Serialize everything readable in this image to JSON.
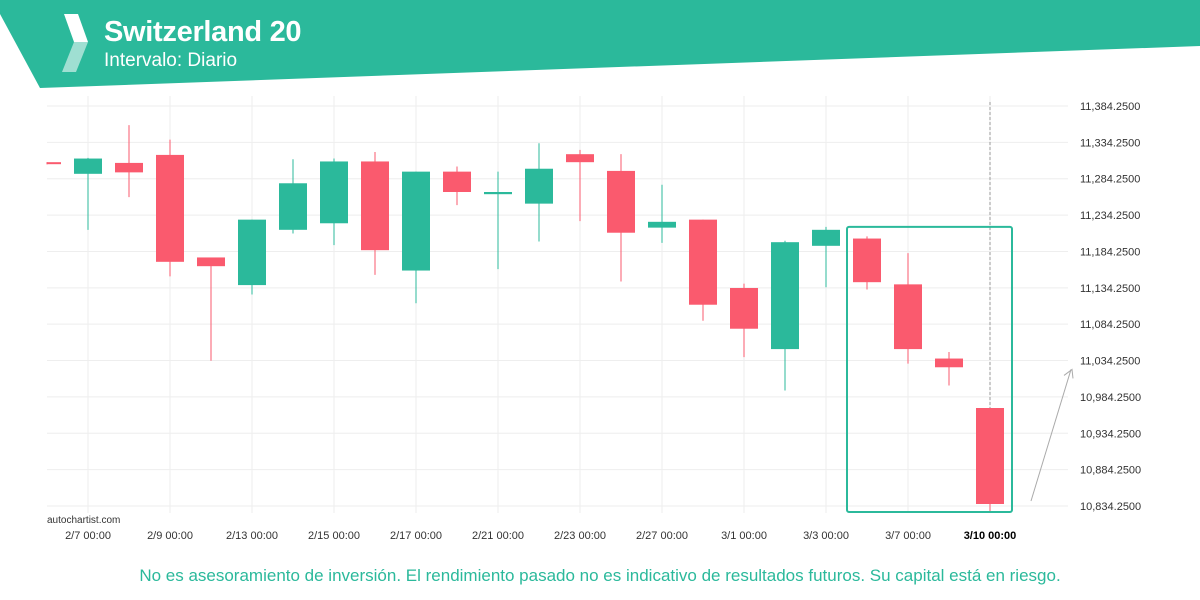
{
  "header": {
    "title": "Switzerland 20",
    "subtitle": "Intervalo: Diario",
    "logo_icon": "autochartist-logo-icon"
  },
  "watermark": "autochartist.com",
  "disclaimer": "No es asesoramiento de inversión. El rendimiento pasado no es indicativo de resultados futuros. Su capital está en riesgo.",
  "colors": {
    "brand": "#2bb99b",
    "bullish": "#2bb99b",
    "bearish": "#fa5a6e",
    "grid": "#eeeeee",
    "axis_text": "#333333",
    "pattern_box": "#2bb99b"
  },
  "chart_data": {
    "type": "candlestick",
    "title": "Switzerland 20",
    "interval": "Diario",
    "ylim": [
      10826.25,
      11392.25
    ],
    "y_ticks": [
      "11,384.2500",
      "11,334.2500",
      "11,284.2500",
      "11,234.2500",
      "11,184.2500",
      "11,134.2500",
      "11,084.2500",
      "11,034.2500",
      "10,984.2500",
      "10,934.2500",
      "10,884.2500",
      "10,834.2500"
    ],
    "x_ticks": [
      {
        "label": "2/7 00:00",
        "index": 1
      },
      {
        "label": "2/9 00:00",
        "index": 3
      },
      {
        "label": "2/13 00:00",
        "index": 5
      },
      {
        "label": "2/15 00:00",
        "index": 7
      },
      {
        "label": "2/17 00:00",
        "index": 9
      },
      {
        "label": "2/21 00:00",
        "index": 11
      },
      {
        "label": "2/23 00:00",
        "index": 13
      },
      {
        "label": "2/27 00:00",
        "index": 15
      },
      {
        "label": "3/1 00:00",
        "index": 17
      },
      {
        "label": "3/3 00:00",
        "index": 19
      },
      {
        "label": "3/7 00:00",
        "index": 21
      },
      {
        "label": "3/10 00:00",
        "index": 23,
        "current": true
      }
    ],
    "grid": true,
    "candles": [
      {
        "o": 11307,
        "h": 11307,
        "l": 11304,
        "c": 11305
      },
      {
        "o": 11291,
        "h": 11313,
        "l": 11214,
        "c": 11312
      },
      {
        "o": 11306,
        "h": 11358,
        "l": 11259,
        "c": 11293
      },
      {
        "o": 11317,
        "h": 11338,
        "l": 11150,
        "c": 11170
      },
      {
        "o": 11176,
        "h": 11176,
        "l": 11034,
        "c": 11164
      },
      {
        "o": 11138,
        "h": 11228,
        "l": 11125,
        "c": 11228
      },
      {
        "o": 11214,
        "h": 11311,
        "l": 11209,
        "c": 11278
      },
      {
        "o": 11223,
        "h": 11312,
        "l": 11193,
        "c": 11308
      },
      {
        "o": 11308,
        "h": 11321,
        "l": 11152,
        "c": 11186
      },
      {
        "o": 11158,
        "h": 11294,
        "l": 11113,
        "c": 11294
      },
      {
        "o": 11294,
        "h": 11301,
        "l": 11248,
        "c": 11266
      },
      {
        "o": 11263,
        "h": 11294,
        "l": 11160,
        "c": 11266
      },
      {
        "o": 11250,
        "h": 11333,
        "l": 11198,
        "c": 11298
      },
      {
        "o": 11318,
        "h": 11324,
        "l": 11226,
        "c": 11307
      },
      {
        "o": 11295,
        "h": 11318,
        "l": 11143,
        "c": 11210
      },
      {
        "o": 11217,
        "h": 11276,
        "l": 11196,
        "c": 11225
      },
      {
        "o": 11228,
        "h": 11228,
        "l": 11089,
        "c": 11111
      },
      {
        "o": 11134,
        "h": 11140,
        "l": 11039,
        "c": 11078
      },
      {
        "o": 11050,
        "h": 11199,
        "l": 10993,
        "c": 11197
      },
      {
        "o": 11192,
        "h": 11218,
        "l": 11135,
        "c": 11214
      },
      {
        "o": 11202,
        "h": 11205,
        "l": 11132,
        "c": 11142
      },
      {
        "o": 11139,
        "h": 11182,
        "l": 11030,
        "c": 11050
      },
      {
        "o": 11037,
        "h": 11046,
        "l": 11000,
        "c": 11025
      },
      {
        "o": 10969,
        "h": 10969,
        "l": 10827,
        "c": 10837
      }
    ],
    "pattern_box": {
      "from_index": 20,
      "to_index": 23,
      "high": 11218,
      "low": 10826
    },
    "current_index": 23,
    "projection": {
      "from_price": 10837,
      "to_price": 11022
    }
  }
}
